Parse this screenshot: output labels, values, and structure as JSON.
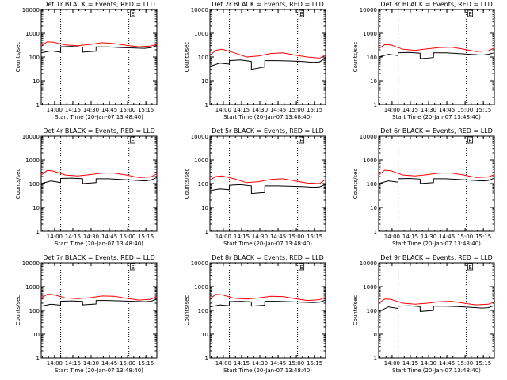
{
  "figure": {
    "x_tick_labels": [
      "14:00",
      "14:15",
      "14:30",
      "14:45",
      "15:00",
      "15:15"
    ],
    "y_tick_labels": [
      "1",
      "10",
      "100",
      "1000",
      "10000"
    ],
    "colors": {
      "events": "#000000",
      "lld": "#ff0000",
      "axes": "#000000",
      "background": "#ffffff"
    }
  },
  "chart_data": [
    {
      "type": "line",
      "title": "Det 1r BLACK = Events, RED = LLD",
      "xlabel": "Start Time (20-Jan-07 13:48:40)",
      "ylabel": "Counts/sec",
      "x_unit": "minutes after 13:48:40",
      "xlim": [
        0,
        95
      ],
      "ylim": [
        1,
        10000
      ],
      "y_scale": "log",
      "x_ticks": [
        11,
        26,
        41,
        56,
        71,
        86
      ],
      "vlines": [
        16,
        72
      ],
      "grid": false,
      "marker_label": "E",
      "marker_x": 72,
      "series": [
        {
          "name": "Events",
          "color": "#000000",
          "x": [
            0,
            8,
            15.9,
            16,
            25,
            34,
            34.1,
            45,
            45.1,
            55,
            65,
            75,
            85,
            90,
            95
          ],
          "values": [
            150,
            180,
            160,
            270,
            280,
            260,
            160,
            175,
            265,
            265,
            250,
            240,
            230,
            245,
            300
          ]
        },
        {
          "name": "LLD",
          "color": "#ff0000",
          "x": [
            0,
            5,
            10,
            20,
            30,
            40,
            50,
            60,
            70,
            80,
            90,
            95
          ],
          "values": [
            300,
            440,
            420,
            320,
            300,
            340,
            400,
            370,
            310,
            270,
            290,
            340
          ]
        }
      ]
    },
    {
      "type": "line",
      "title": "Det 2r BLACK = Events, RED = LLD",
      "xlabel": "Start Time (20-Jan-07 13:48:40)",
      "ylabel": "Counts/sec",
      "x_unit": "minutes after 13:48:40",
      "xlim": [
        0,
        95
      ],
      "ylim": [
        1,
        10000
      ],
      "y_scale": "log",
      "x_ticks": [
        11,
        26,
        41,
        56,
        71,
        86
      ],
      "vlines": [
        16,
        72
      ],
      "grid": false,
      "marker_label": "E",
      "marker_x": 72,
      "series": [
        {
          "name": "Events",
          "color": "#000000",
          "x": [
            0,
            8,
            15.9,
            16,
            25,
            34,
            34.1,
            45,
            45.1,
            55,
            65,
            75,
            85,
            90,
            95
          ],
          "values": [
            40,
            55,
            50,
            70,
            75,
            65,
            30,
            38,
            70,
            70,
            68,
            65,
            60,
            62,
            90
          ]
        },
        {
          "name": "LLD",
          "color": "#ff0000",
          "x": [
            0,
            5,
            10,
            20,
            30,
            40,
            50,
            60,
            70,
            80,
            90,
            95
          ],
          "values": [
            120,
            190,
            210,
            150,
            100,
            110,
            140,
            150,
            120,
            100,
            90,
            120
          ]
        }
      ]
    },
    {
      "type": "line",
      "title": "Det 3r BLACK = Events, RED = LLD",
      "xlabel": "Start Time (20-Jan-07 13:48:40)",
      "ylabel": "Counts/sec",
      "x_unit": "minutes after 13:48:40",
      "xlim": [
        0,
        95
      ],
      "ylim": [
        1,
        10000
      ],
      "y_scale": "log",
      "x_ticks": [
        11,
        26,
        41,
        56,
        71,
        86
      ],
      "vlines": [
        16,
        72
      ],
      "grid": false,
      "marker_label": "E",
      "marker_x": 72,
      "series": [
        {
          "name": "Events",
          "color": "#000000",
          "x": [
            0,
            8,
            15.9,
            16,
            25,
            34,
            34.1,
            45,
            45.1,
            55,
            65,
            75,
            85,
            90,
            95
          ],
          "values": [
            100,
            130,
            115,
            150,
            155,
            145,
            85,
            95,
            150,
            150,
            140,
            130,
            120,
            130,
            150
          ]
        },
        {
          "name": "LLD",
          "color": "#ff0000",
          "x": [
            0,
            5,
            10,
            20,
            30,
            40,
            50,
            60,
            70,
            80,
            90,
            95
          ],
          "values": [
            220,
            330,
            320,
            210,
            190,
            220,
            250,
            260,
            210,
            170,
            180,
            240
          ]
        }
      ]
    },
    {
      "type": "line",
      "title": "Det 4r BLACK = Events, RED = LLD",
      "xlabel": "Start Time (20-Jan-07 13:48:40)",
      "ylabel": "Counts/sec",
      "x_unit": "minutes after 13:48:40",
      "xlim": [
        0,
        95
      ],
      "ylim": [
        1,
        10000
      ],
      "y_scale": "log",
      "x_ticks": [
        11,
        26,
        41,
        56,
        71,
        86
      ],
      "vlines": [
        16,
        72
      ],
      "grid": false,
      "marker_label": "E",
      "marker_x": 72,
      "series": [
        {
          "name": "Events",
          "color": "#000000",
          "x": [
            0,
            8,
            15.9,
            16,
            25,
            34,
            34.1,
            45,
            45.1,
            55,
            65,
            75,
            85,
            90,
            95
          ],
          "values": [
            100,
            130,
            110,
            165,
            170,
            160,
            100,
            110,
            160,
            160,
            150,
            140,
            130,
            140,
            180
          ]
        },
        {
          "name": "LLD",
          "color": "#ff0000",
          "x": [
            0,
            5,
            10,
            20,
            30,
            40,
            50,
            60,
            70,
            80,
            90,
            95
          ],
          "values": [
            230,
            360,
            340,
            230,
            210,
            240,
            280,
            280,
            230,
            180,
            190,
            260
          ]
        }
      ]
    },
    {
      "type": "line",
      "title": "Det 5r BLACK = Events, RED = LLD",
      "xlabel": "Start Time (20-Jan-07 13:48:40)",
      "ylabel": "Counts/sec",
      "x_unit": "minutes after 13:48:40",
      "xlim": [
        0,
        95
      ],
      "ylim": [
        1,
        10000
      ],
      "y_scale": "log",
      "x_ticks": [
        11,
        26,
        41,
        56,
        71,
        86
      ],
      "vlines": [
        16,
        72
      ],
      "grid": false,
      "marker_label": "E",
      "marker_x": 72,
      "series": [
        {
          "name": "Events",
          "color": "#000000",
          "x": [
            0,
            8,
            15.9,
            16,
            25,
            34,
            34.1,
            45,
            45.1,
            55,
            65,
            75,
            85,
            90,
            95
          ],
          "values": [
            50,
            60,
            55,
            85,
            90,
            80,
            38,
            42,
            80,
            80,
            78,
            75,
            70,
            72,
            95
          ]
        },
        {
          "name": "LLD",
          "color": "#ff0000",
          "x": [
            0,
            5,
            10,
            20,
            30,
            40,
            50,
            60,
            70,
            80,
            90,
            95
          ],
          "values": [
            140,
            200,
            210,
            160,
            110,
            120,
            150,
            160,
            130,
            105,
            100,
            150
          ]
        }
      ]
    },
    {
      "type": "line",
      "title": "Det 6r BLACK = Events, RED = LLD",
      "xlabel": "Start Time (20-Jan-07 13:48:40)",
      "ylabel": "Counts/sec",
      "x_unit": "minutes after 13:48:40",
      "xlim": [
        0,
        95
      ],
      "ylim": [
        1,
        10000
      ],
      "y_scale": "log",
      "x_ticks": [
        11,
        26,
        41,
        56,
        71,
        86
      ],
      "vlines": [
        16,
        72
      ],
      "grid": false,
      "marker_label": "E",
      "marker_x": 72,
      "series": [
        {
          "name": "Events",
          "color": "#000000",
          "x": [
            0,
            8,
            15.9,
            16,
            25,
            34,
            34.1,
            45,
            45.1,
            55,
            65,
            75,
            85,
            90,
            95
          ],
          "values": [
            100,
            130,
            115,
            160,
            165,
            155,
            100,
            110,
            160,
            160,
            150,
            140,
            130,
            135,
            170
          ]
        },
        {
          "name": "LLD",
          "color": "#ff0000",
          "x": [
            0,
            5,
            10,
            20,
            30,
            40,
            50,
            60,
            70,
            80,
            90,
            95
          ],
          "values": [
            230,
            370,
            350,
            230,
            210,
            240,
            280,
            280,
            230,
            180,
            190,
            240
          ]
        }
      ]
    },
    {
      "type": "line",
      "title": "Det 7r BLACK = Events, RED = LLD",
      "xlabel": "Start Time (20-Jan-07 13:48:40)",
      "ylabel": "Counts/sec",
      "x_unit": "minutes after 13:48:40",
      "xlim": [
        0,
        95
      ],
      "ylim": [
        1,
        10000
      ],
      "y_scale": "log",
      "x_ticks": [
        11,
        26,
        41,
        56,
        71,
        86
      ],
      "vlines": [
        16,
        72
      ],
      "grid": false,
      "marker_label": "E",
      "marker_x": 72,
      "series": [
        {
          "name": "Events",
          "color": "#000000",
          "x": [
            0,
            8,
            15.9,
            16,
            25,
            34,
            34.1,
            45,
            45.1,
            55,
            65,
            75,
            85,
            90,
            95
          ],
          "values": [
            150,
            180,
            165,
            240,
            250,
            235,
            170,
            185,
            260,
            260,
            250,
            240,
            230,
            240,
            290
          ]
        },
        {
          "name": "LLD",
          "color": "#ff0000",
          "x": [
            0,
            5,
            10,
            20,
            30,
            40,
            50,
            60,
            70,
            80,
            90,
            95
          ],
          "values": [
            320,
            480,
            460,
            330,
            310,
            340,
            400,
            390,
            320,
            270,
            290,
            380
          ]
        }
      ]
    },
    {
      "type": "line",
      "title": "Det 8r BLACK = Events, RED = LLD",
      "xlabel": "Start Time (20-Jan-07 13:48:40)",
      "ylabel": "Counts/sec",
      "x_unit": "minutes after 13:48:40",
      "xlim": [
        0,
        95
      ],
      "ylim": [
        1,
        10000
      ],
      "y_scale": "log",
      "x_ticks": [
        11,
        26,
        41,
        56,
        71,
        86
      ],
      "vlines": [
        16,
        72
      ],
      "grid": false,
      "marker_label": "E",
      "marker_x": 72,
      "series": [
        {
          "name": "Events",
          "color": "#000000",
          "x": [
            0,
            8,
            15.9,
            16,
            25,
            34,
            34.1,
            45,
            45.1,
            55,
            65,
            75,
            85,
            90,
            95
          ],
          "values": [
            140,
            170,
            155,
            230,
            240,
            225,
            150,
            165,
            240,
            240,
            230,
            220,
            210,
            220,
            270
          ]
        },
        {
          "name": "LLD",
          "color": "#ff0000",
          "x": [
            0,
            5,
            10,
            20,
            30,
            40,
            50,
            60,
            70,
            80,
            90,
            95
          ],
          "values": [
            310,
            470,
            450,
            320,
            300,
            330,
            390,
            380,
            310,
            260,
            280,
            360
          ]
        }
      ]
    },
    {
      "type": "line",
      "title": "Det 9r BLACK = Events, RED = LLD",
      "xlabel": "Start Time (20-Jan-07 13:48:40)",
      "ylabel": "Counts/sec",
      "x_unit": "minutes after 13:48:40",
      "xlim": [
        0,
        95
      ],
      "ylim": [
        1,
        10000
      ],
      "y_scale": "log",
      "x_ticks": [
        11,
        26,
        41,
        56,
        71,
        86
      ],
      "vlines": [
        16,
        72
      ],
      "grid": false,
      "marker_label": "E",
      "marker_x": 72,
      "series": [
        {
          "name": "Events",
          "color": "#000000",
          "x": [
            0,
            8,
            15.9,
            16,
            25,
            34,
            34.1,
            45,
            45.1,
            55,
            65,
            75,
            85,
            90,
            95
          ],
          "values": [
            90,
            140,
            120,
            150,
            155,
            145,
            90,
            100,
            150,
            150,
            145,
            135,
            125,
            130,
            160
          ]
        },
        {
          "name": "LLD",
          "color": "#ff0000",
          "x": [
            0,
            5,
            10,
            20,
            30,
            40,
            50,
            60,
            70,
            80,
            90,
            95
          ],
          "values": [
            200,
            300,
            290,
            200,
            180,
            200,
            230,
            240,
            200,
            170,
            180,
            220
          ]
        }
      ]
    }
  ]
}
